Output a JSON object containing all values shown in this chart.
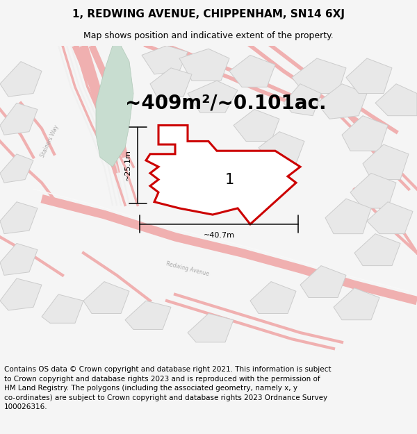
{
  "title": "1, REDWING AVENUE, CHIPPENHAM, SN14 6XJ",
  "subtitle": "Map shows position and indicative extent of the property.",
  "area_label": "~409m²/~0.101ac.",
  "width_label": "~40.7m",
  "height_label": "~25.1m",
  "number_label": "1",
  "footer_text": "Contains OS data © Crown copyright and database right 2021. This information is subject\nto Crown copyright and database rights 2023 and is reproduced with the permission of\nHM Land Registry. The polygons (including the associated geometry, namely x, y\nco-ordinates) are subject to Crown copyright and database rights 2023 Ordnance Survey\n100026316.",
  "bg_color": "#f5f5f5",
  "map_bg": "#ffffff",
  "road_color": "#f0b0b0",
  "road_thin_color": "#e8c0c0",
  "green_fill": "#c8ddd0",
  "green_edge": "#b0c8b8",
  "bldg_fill": "#e8e8e8",
  "bldg_edge": "#cccccc",
  "property_fill": "#ffffff",
  "property_edge": "#cc0000",
  "dim_color": "#111111",
  "title_fontsize": 11,
  "subtitle_fontsize": 9,
  "area_fontsize": 20,
  "footer_fontsize": 7.5,
  "label_fontsize": 15
}
